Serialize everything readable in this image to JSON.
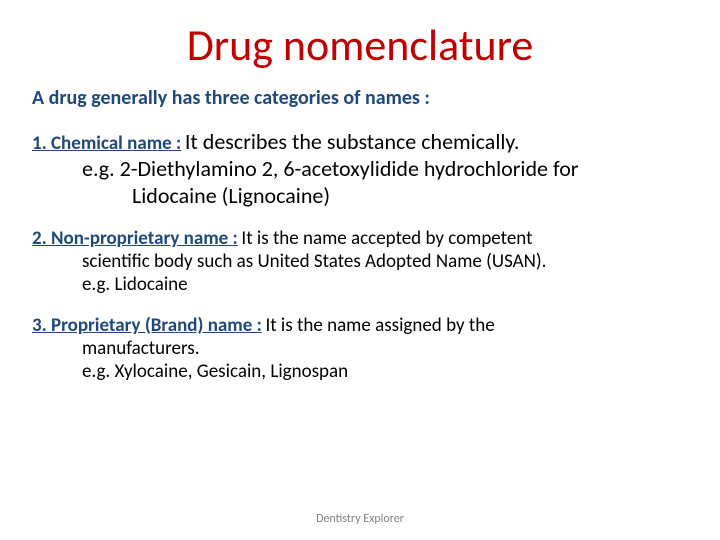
{
  "title": {
    "text": "Drug nomenclature",
    "color": "#c00000",
    "fontsize": 44,
    "weight": "400"
  },
  "intro": {
    "text": "A drug generally has three categories of names :",
    "color": "#1f497d",
    "fontsize": 20,
    "weight": "700"
  },
  "sections": [
    {
      "lead": "1. Chemical name :",
      "lead_color": "#1f497d",
      "lead_fontsize": 19,
      "lead_weight": "700",
      "lead_underline": true,
      "desc": "It describes the substance chemically.",
      "desc_color": "#000000",
      "desc_fontsize": 22,
      "example1": "e.g.  2-Diethylamino 2, 6-acetoxylidide hydrochloride  for",
      "example2": "Lidocaine (Lignocaine)",
      "example_color": "#000000",
      "example_fontsize": 22,
      "justify": false
    },
    {
      "lead": "2. Non-proprietary name :",
      "lead_color": "#1f497d",
      "lead_fontsize": 19,
      "lead_weight": "700",
      "lead_underline": true,
      "desc": "It is the name accepted by competent",
      "body2": "scientific body such as United States Adopted Name (USAN).",
      "body3": "e.g. Lidocaine",
      "desc_color": "#000000",
      "desc_fontsize": 19,
      "justify": true
    },
    {
      "lead": "3. Proprietary (Brand) name :",
      "lead_color": "#1f497d",
      "lead_fontsize": 19,
      "lead_weight": "700",
      "lead_underline": true,
      "desc": "It is the name assigned by the",
      "body2": "manufacturers.",
      "body3": "e.g. Xylocaine, Gesicain, Lignospan",
      "desc_color": "#000000",
      "desc_fontsize": 19,
      "justify": true
    }
  ],
  "footer": {
    "text": "Dentistry Explorer",
    "color": "#808080",
    "fontsize": 12
  }
}
